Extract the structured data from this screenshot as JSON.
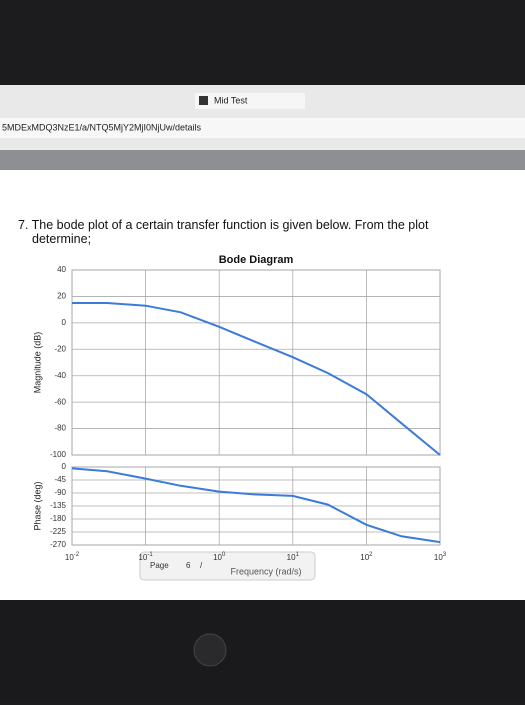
{
  "header": {
    "tab": "Mid Test",
    "url": "5MDExMDQ3NzE1/a/NTQ5MjY2MjI0NjUw/details"
  },
  "question": "7. The bode plot of a certain transfer function is given below. From the plot determine;",
  "toolbar": {
    "page": "Page",
    "current": "6",
    "separator": "/"
  },
  "chart_data": [
    {
      "type": "line",
      "title": "Bode Diagram",
      "y_label": "Magnitude (dB)",
      "log_x": true,
      "grid": true,
      "x": [
        0.01,
        0.03,
        0.1,
        0.3,
        1,
        3,
        10,
        30,
        100,
        300,
        1000
      ],
      "series": [
        {
          "name": "Magnitude",
          "color": "#3b7bd9",
          "values": [
            15,
            15,
            13,
            8,
            -3,
            -14,
            -26,
            -38,
            -54,
            -76,
            -100
          ]
        }
      ],
      "xlim": [
        0.01,
        1000
      ],
      "ylim": [
        -100,
        40
      ],
      "yticks": [
        40,
        20,
        0,
        -20,
        -40,
        -60,
        -80,
        -100
      ]
    },
    {
      "type": "line",
      "y_label": "Phase (deg)",
      "x_label": "Frequency (rad/s)",
      "log_x": true,
      "grid": true,
      "x": [
        0.01,
        0.03,
        0.1,
        0.3,
        1,
        3,
        10,
        30,
        100,
        300,
        1000
      ],
      "series": [
        {
          "name": "Phase",
          "color": "#3b7bd9",
          "values": [
            -5,
            -15,
            -40,
            -65,
            -85,
            -95,
            -100,
            -130,
            -200,
            -240,
            -260
          ]
        }
      ],
      "xlim": [
        0.01,
        1000
      ],
      "ylim": [
        -270,
        0
      ],
      "yticks": [
        0,
        -45,
        -90,
        -135,
        -180,
        -225,
        -270
      ],
      "xticks": [
        {
          "value": 0.01,
          "label": "10",
          "exponent": "-2"
        },
        {
          "value": 0.1,
          "label": "10",
          "exponent": "-1"
        },
        {
          "value": 1,
          "label": "10",
          "exponent": "0"
        },
        {
          "value": 10,
          "label": "10",
          "exponent": "1"
        },
        {
          "value": 100,
          "label": "10",
          "exponent": "2"
        },
        {
          "value": 1000,
          "label": "10",
          "exponent": "3"
        }
      ]
    }
  ]
}
